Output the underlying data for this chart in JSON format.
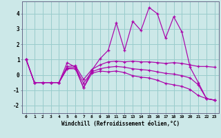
{
  "xlabel": "Windchill (Refroidissement éolien,°C)",
  "background_color": "#cce8e8",
  "grid_color": "#99cccc",
  "line_color": "#aa00aa",
  "xlim": [
    -0.5,
    23.5
  ],
  "ylim": [
    -2.5,
    4.8
  ],
  "xticks": [
    0,
    1,
    2,
    3,
    4,
    5,
    6,
    7,
    8,
    9,
    10,
    11,
    12,
    13,
    14,
    15,
    16,
    17,
    18,
    19,
    20,
    21,
    22,
    23
  ],
  "yticks": [
    -2,
    -1,
    0,
    1,
    2,
    3,
    4
  ],
  "line1_y": [
    1.0,
    -0.5,
    -0.5,
    -0.5,
    -0.5,
    0.8,
    0.5,
    -0.85,
    0.3,
    1.05,
    1.6,
    3.4,
    1.6,
    3.5,
    2.9,
    4.4,
    4.0,
    2.4,
    3.8,
    2.8,
    0.5,
    -0.5,
    -1.55,
    -1.65
  ],
  "line2_y": [
    1.0,
    -0.5,
    -0.5,
    -0.5,
    -0.5,
    0.55,
    0.6,
    -0.3,
    0.35,
    0.65,
    0.85,
    0.9,
    0.85,
    0.9,
    0.85,
    0.85,
    0.8,
    0.75,
    0.8,
    0.75,
    0.65,
    0.55,
    0.55,
    0.5
  ],
  "line3_y": [
    1.0,
    -0.5,
    -0.5,
    -0.5,
    -0.5,
    0.4,
    0.4,
    -0.85,
    0.1,
    0.25,
    0.2,
    0.25,
    0.15,
    -0.05,
    -0.15,
    -0.2,
    -0.35,
    -0.55,
    -0.65,
    -0.75,
    -0.95,
    -1.35,
    -1.55,
    -1.65
  ],
  "line4_y": [
    1.0,
    -0.5,
    -0.5,
    -0.5,
    -0.5,
    0.45,
    0.5,
    -0.55,
    0.2,
    0.4,
    0.5,
    0.55,
    0.5,
    0.4,
    0.35,
    0.3,
    0.2,
    0.1,
    0.05,
    -0.05,
    -0.2,
    -0.65,
    -1.55,
    -1.65
  ]
}
